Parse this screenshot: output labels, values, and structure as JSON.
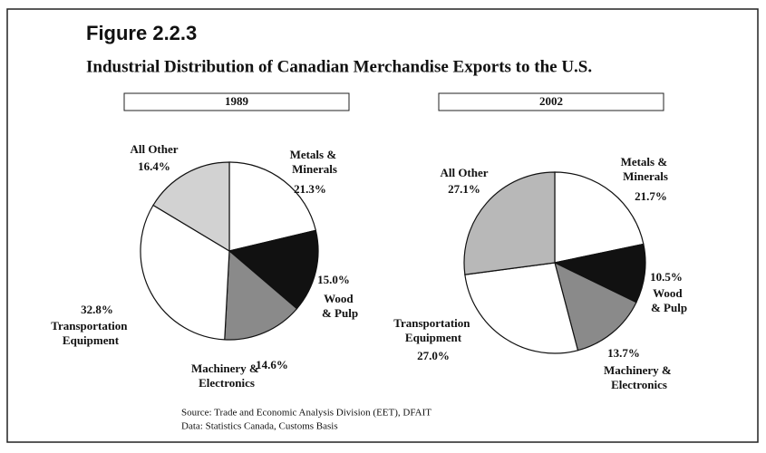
{
  "figure": "Figure 2.2.3",
  "title": "Industrial Distribution of Canadian Merchandise Exports to the U.S.",
  "source": [
    "Source: Trade and Economic Analysis Division (EET), DFAIT",
    "Data: Statistics Canada, Customs Basis"
  ],
  "chart_data": [
    {
      "type": "pie",
      "title": "1989",
      "categories": [
        "Metals & Minerals",
        "Wood & Pulp",
        "Machinery & Electronics",
        "Transportation Equipment",
        "All Other"
      ],
      "values": [
        21.3,
        15.0,
        14.6,
        32.8,
        16.4
      ],
      "value_labels": [
        "21.3%",
        "15.0%",
        "14.6%",
        "32.8%",
        "16.4%"
      ],
      "colors": [
        "#ffffff",
        "#111111",
        "#8a8a8a",
        "#ffffff",
        "#d2d2d2"
      ]
    },
    {
      "type": "pie",
      "title": "2002",
      "categories": [
        "Metals & Minerals",
        "Wood & Pulp",
        "Machinery & Electronics",
        "Transportation Equipment",
        "All Other"
      ],
      "values": [
        21.7,
        10.5,
        13.7,
        27.0,
        27.1
      ],
      "value_labels": [
        "21.7%",
        "10.5%",
        "13.7%",
        "27.0%",
        "27.1%"
      ],
      "colors": [
        "#ffffff",
        "#111111",
        "#8a8a8a",
        "#ffffff",
        "#b8b8b8"
      ]
    }
  ]
}
